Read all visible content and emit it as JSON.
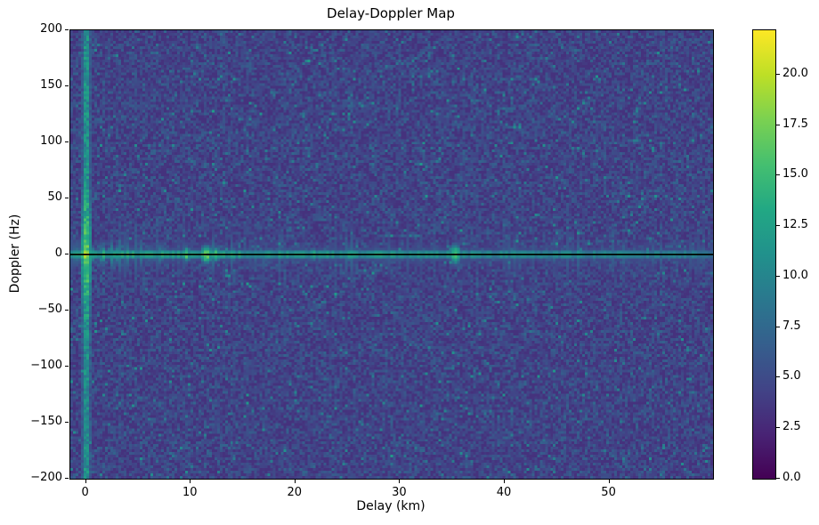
{
  "chart_data": {
    "type": "heatmap",
    "title": "Delay-Doppler Map",
    "xlabel": "Delay (km)",
    "ylabel": "Doppler (Hz)",
    "x_range_km": [
      -1.5,
      59.9
    ],
    "y_range_hz": [
      -200,
      200
    ],
    "x_ticks": {
      "values": [
        0,
        10,
        20,
        30,
        40,
        50
      ],
      "labels": [
        "0",
        "10",
        "20",
        "30",
        "40",
        "50"
      ]
    },
    "y_ticks": {
      "values": [
        200,
        150,
        100,
        50,
        0,
        -50,
        -100,
        -150,
        -200
      ],
      "labels": [
        "200",
        "150",
        "100",
        "50",
        "0",
        "−50",
        "−100",
        "−150",
        "−200"
      ]
    },
    "colorbar": {
      "vmin": 0,
      "vmax": 22.2,
      "tick_values": [
        0,
        2.5,
        5,
        7.5,
        10,
        12.5,
        15,
        17.5,
        20
      ],
      "tick_labels": [
        "0.0",
        "2.5",
        "5.0",
        "7.5",
        "10.0",
        "12.5",
        "15.0",
        "17.5",
        "20.0"
      ]
    },
    "colormap": "viridis",
    "colormap_stops": [
      "#440154",
      "#482475",
      "#414487",
      "#355f8d",
      "#2a788e",
      "#21918c",
      "#22a884",
      "#44bf70",
      "#7ad151",
      "#bddf26",
      "#fde725"
    ],
    "grid": {
      "nx": 241,
      "ny": 169,
      "seed": 1337
    },
    "noise_floor": {
      "base": 1.4,
      "spread": 3.0,
      "speckle_prob": 0.035,
      "speckle_boost": 2.1,
      "speckle_spread": 3.0
    },
    "features": {
      "zero_delay_stripe": {
        "delay_km": 0,
        "half_width_km": 0.18,
        "soft_half_width_km": 0.5,
        "level": 10.5,
        "soft_level": 6.0,
        "doppler_boost": 5.0,
        "doppler_boost_sigma_hz": 30
      },
      "zero_doppler_band": {
        "doppler_hz": 0,
        "peak_level_near": 11.5,
        "level_slope_per_km": 0.07,
        "core_sigma_hz": 2.6,
        "skirt_max_delay_km": 16,
        "skirt_level_near": 8.0,
        "skirt_slope_per_km": 0.4,
        "skirt_level_far": 2.5,
        "floor_offset": 3.2
      },
      "zero_doppler_line": {
        "doppler_hz": 0,
        "color": "#000000"
      },
      "echo_blobs": [
        {
          "delay_km": 0.0,
          "peak": 22.2,
          "sigma_delay_km": 0.38,
          "sigma_doppler_hz": 4.5
        },
        {
          "delay_km": 0.0,
          "peak": 15.5,
          "sigma_delay_km": 0.33,
          "sigma_doppler_hz": 20
        },
        {
          "delay_km": 9.6,
          "peak": 16.5,
          "sigma_delay_km": 0.28,
          "sigma_doppler_hz": 5
        },
        {
          "delay_km": 11.5,
          "peak": 18.0,
          "sigma_delay_km": 0.45,
          "sigma_doppler_hz": 6
        },
        {
          "delay_km": 12.4,
          "peak": 16.5,
          "sigma_delay_km": 0.3,
          "sigma_doppler_hz": 5
        },
        {
          "delay_km": 14.1,
          "peak": 13.5,
          "sigma_delay_km": 0.3,
          "sigma_doppler_hz": 4
        },
        {
          "delay_km": 21.7,
          "peak": 14.5,
          "sigma_delay_km": 0.35,
          "sigma_doppler_hz": 4
        },
        {
          "delay_km": 25.2,
          "peak": 14.5,
          "sigma_delay_km": 0.4,
          "sigma_doppler_hz": 4
        },
        {
          "delay_km": 27.8,
          "peak": 13.5,
          "sigma_delay_km": 0.3,
          "sigma_doppler_hz": 4
        },
        {
          "delay_km": 35.3,
          "peak": 16.5,
          "sigma_delay_km": 0.4,
          "sigma_doppler_hz": 7
        },
        {
          "delay_km": 38.6,
          "peak": 12.5,
          "sigma_delay_km": 0.25,
          "sigma_doppler_hz": 3
        },
        {
          "delay_km": 47.0,
          "peak": 13.0,
          "sigma_delay_km": 0.25,
          "sigma_doppler_hz": 3.5
        }
      ]
    }
  }
}
